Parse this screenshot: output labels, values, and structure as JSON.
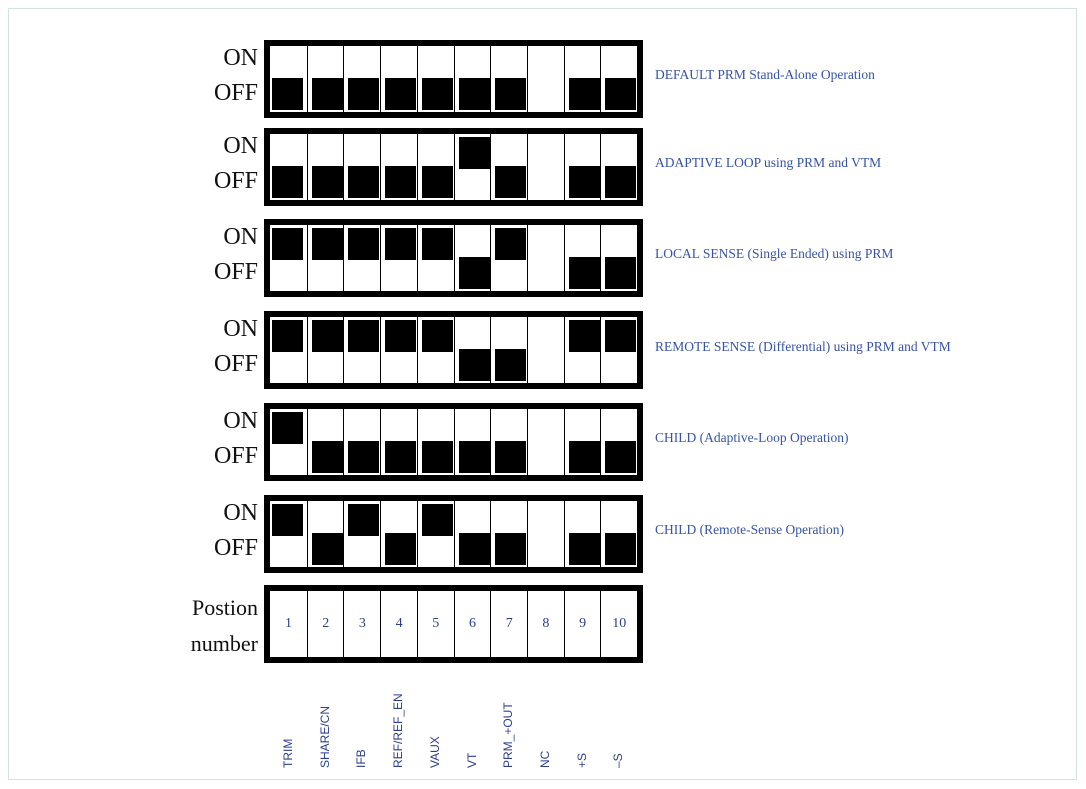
{
  "labels": {
    "on": "ON",
    "off": "OFF",
    "position_line1": "Postion",
    "position_line2": "number"
  },
  "rows": [
    {
      "description": "DEFAULT PRM Stand-Alone Operation",
      "states": [
        "off",
        "off",
        "off",
        "off",
        "off",
        "off",
        "off",
        "none",
        "off",
        "off"
      ]
    },
    {
      "description": "ADAPTIVE LOOP using PRM and VTM",
      "states": [
        "off",
        "off",
        "off",
        "off",
        "off",
        "on",
        "off",
        "none",
        "off",
        "off"
      ]
    },
    {
      "description": "LOCAL SENSE (Single Ended) using PRM",
      "states": [
        "on",
        "on",
        "on",
        "on",
        "on",
        "off",
        "on",
        "none",
        "off",
        "off"
      ]
    },
    {
      "description": "REMOTE SENSE (Differential) using PRM and VTM",
      "states": [
        "on",
        "on",
        "on",
        "on",
        "on",
        "off",
        "off",
        "none",
        "on",
        "on"
      ]
    },
    {
      "description": "CHILD (Adaptive-Loop Operation)",
      "states": [
        "on",
        "off",
        "off",
        "off",
        "off",
        "off",
        "off",
        "none",
        "off",
        "off"
      ]
    },
    {
      "description": "CHILD (Remote-Sense Operation)",
      "states": [
        "on",
        "off",
        "on",
        "off",
        "on",
        "off",
        "off",
        "none",
        "off",
        "off"
      ]
    }
  ],
  "positions": [
    "1",
    "2",
    "3",
    "4",
    "5",
    "6",
    "7",
    "8",
    "9",
    "10"
  ],
  "pin_names": [
    "TRIM",
    "SHARE/CN",
    "IFB",
    "REF/REF_EN",
    "VAUX",
    "VT",
    "PRM_+OUT",
    "NC",
    "+S",
    "–S"
  ],
  "colors": {
    "description_text": "#3653a6",
    "pin_text": "#2b3e8c",
    "knob": "#000000"
  }
}
